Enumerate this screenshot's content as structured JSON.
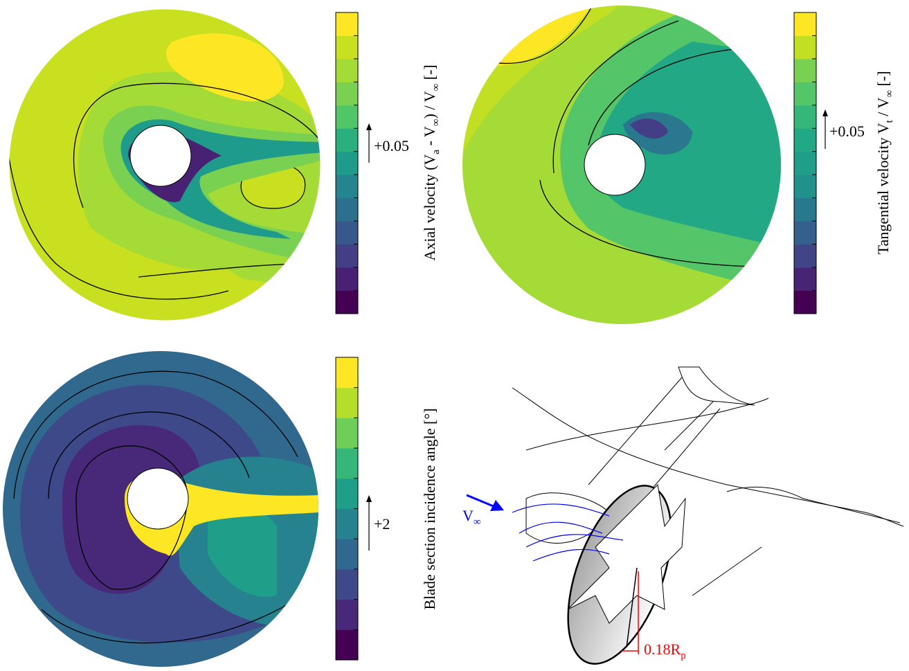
{
  "panels": [
    {
      "colorbar": {
        "label": [
          {
            "text": "Axial velocity (V"
          },
          {
            "sub": "a"
          },
          {
            "text": " - V"
          },
          {
            "sub": "∞"
          },
          {
            "text": ") / V"
          },
          {
            "sub": "∞"
          },
          {
            "text": " [-]"
          }
        ],
        "increment": "+0.05",
        "colors": [
          "#440154",
          "#482173",
          "#433e85",
          "#38588c",
          "#2d708e",
          "#25858e",
          "#1e9b8a",
          "#2ab07f",
          "#52c569",
          "#7ad151",
          "#a5db36",
          "#c8e020",
          "#fde725"
        ]
      }
    },
    {
      "colorbar": {
        "label": [
          {
            "text": "Tangential velocity V"
          },
          {
            "sub": "t"
          },
          {
            "text": " / V"
          },
          {
            "sub": "∞"
          },
          {
            "text": " [-]"
          }
        ],
        "increment": "+0.05",
        "colors": [
          "#440154",
          "#482475",
          "#414487",
          "#355f8d",
          "#2a788e",
          "#21918c",
          "#1f9e89",
          "#22a884",
          "#35b779",
          "#54c568",
          "#7ad151",
          "#c2df23",
          "#fde725"
        ]
      }
    },
    {
      "colorbar": {
        "label": [
          {
            "text": "Blade section incidence angle [°]"
          }
        ],
        "increment": "+2",
        "colors": [
          "#440154",
          "#482878",
          "#3e4989",
          "#31688e",
          "#26828e",
          "#1f9e89",
          "#35b779",
          "#6ece58",
          "#b5de2b",
          "#fde725"
        ]
      }
    }
  ],
  "diagram": {
    "freestream": [
      {
        "text": "V"
      },
      {
        "sub": "∞"
      }
    ],
    "offset": [
      {
        "text": "0.18R"
      },
      {
        "sub": "p"
      }
    ]
  }
}
